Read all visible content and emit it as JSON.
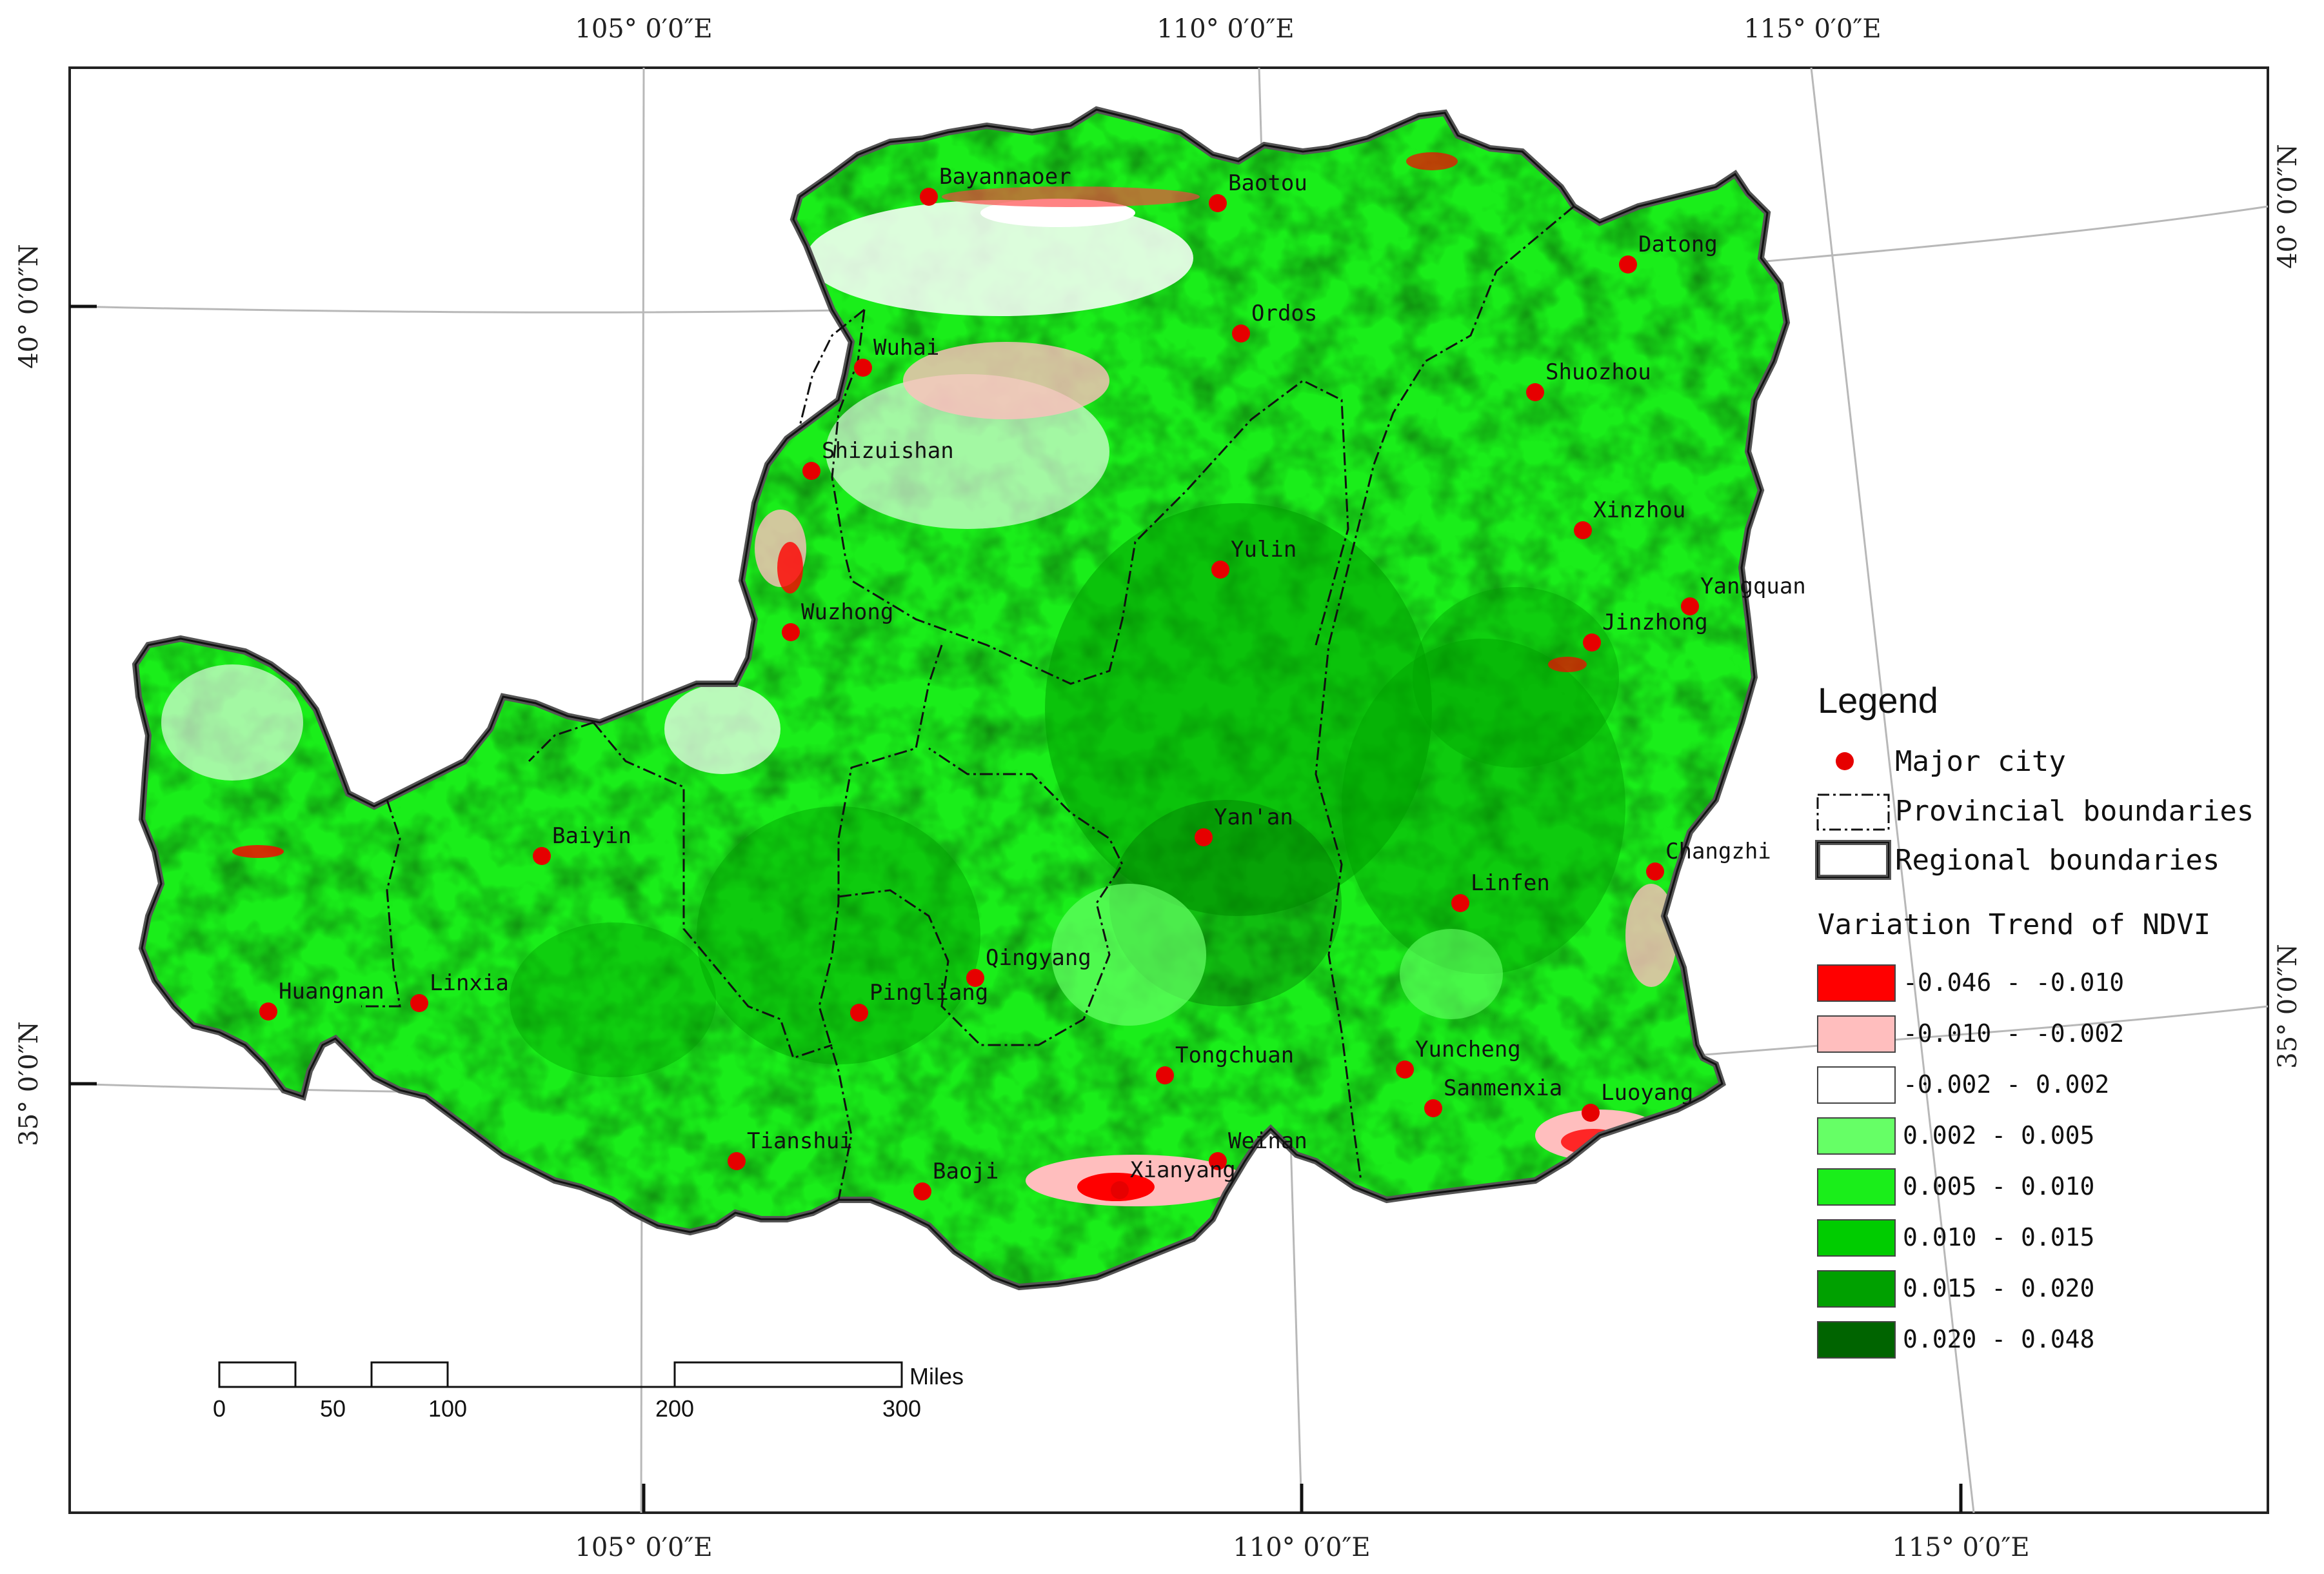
{
  "graticule": {
    "lon_top": [
      "105° 0′0″E",
      "110° 0′0″E",
      "115° 0′0″E"
    ],
    "lon_bottom": [
      "105° 0′0″E",
      "110° 0′0″E",
      "115° 0′0″E"
    ],
    "lat_left": [
      "40° 0′0″N",
      "35° 0′0″N"
    ],
    "lat_right": [
      "40° 0′0″N",
      "35° 0′0″N"
    ]
  },
  "cities": [
    {
      "name": "Bayannaoer"
    },
    {
      "name": "Baotou"
    },
    {
      "name": "Datong"
    },
    {
      "name": "Ordos"
    },
    {
      "name": "Wuhai"
    },
    {
      "name": "Shuozhou"
    },
    {
      "name": "Shizuishan"
    },
    {
      "name": "Xinzhou"
    },
    {
      "name": "Yulin"
    },
    {
      "name": "Yangquan"
    },
    {
      "name": "Wuzhong"
    },
    {
      "name": "Jinzhong"
    },
    {
      "name": "Yan'an"
    },
    {
      "name": "Baiyin"
    },
    {
      "name": "Changzhi"
    },
    {
      "name": "Linfen"
    },
    {
      "name": "Qingyang"
    },
    {
      "name": "Huangnan"
    },
    {
      "name": "Linxia"
    },
    {
      "name": "Pingliang"
    },
    {
      "name": "Tongchuan"
    },
    {
      "name": "Yuncheng"
    },
    {
      "name": "Sanmenxia"
    },
    {
      "name": "Luoyang"
    },
    {
      "name": "Tianshui"
    },
    {
      "name": "Weinan"
    },
    {
      "name": "Baoji"
    },
    {
      "name": "Xianyang"
    }
  ],
  "legend": {
    "title": "Legend",
    "city_label": "Major city",
    "provincial_label": "Provincial boundaries",
    "regional_label": "Regional boundaries",
    "ndvi_title": "Variation Trend of NDVI",
    "classes": [
      {
        "label": "-0.046 - -0.010",
        "color": "#ff0000"
      },
      {
        "label": "-0.010 - -0.002",
        "color": "#ffbebe"
      },
      {
        "label": "-0.002 - 0.002",
        "color": "#ffffff"
      },
      {
        "label": "0.002 - 0.005",
        "color": "#66ff66"
      },
      {
        "label": "0.005 - 0.010",
        "color": "#1aee1a"
      },
      {
        "label": "0.010 - 0.015",
        "color": "#00cc00"
      },
      {
        "label": "0.015 - 0.020",
        "color": "#00a000"
      },
      {
        "label": "0.020 - 0.048",
        "color": "#006400"
      }
    ]
  },
  "scale_bar": {
    "unit": "Miles",
    "ticks": [
      "0",
      "50",
      "100",
      "200",
      "300"
    ]
  }
}
